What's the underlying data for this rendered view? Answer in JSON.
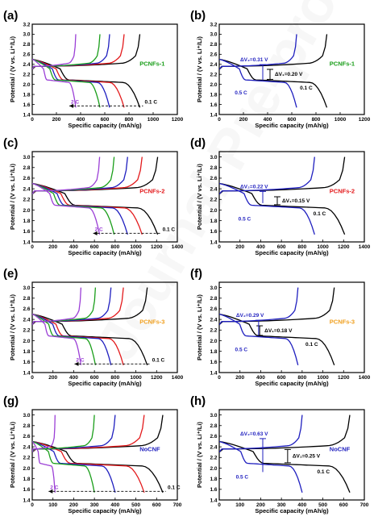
{
  "colors": {
    "c01": "#000000",
    "c02": "#e31a1c",
    "c03": "#1f1fbf",
    "c04": "#1a9e1a",
    "c05": "#9b3fd6",
    "PCNFs-1": "#1a9e1a",
    "PCNFs-2": "#e31a1c",
    "PCNFs-3": "#f0a020",
    "NoCNF": "#1f1fbf"
  },
  "chart_data": [
    {
      "panel": "(a)",
      "type": "line",
      "sample": "PCNFs-1",
      "xlabel": "Specific capacity (mAh/g)",
      "ylabel": "Potential / (V vs. Li⁺/Li)",
      "xlim": [
        0,
        1200
      ],
      "xticks": [
        0,
        200,
        400,
        600,
        800,
        1000,
        1200
      ],
      "ylim": [
        1.4,
        3.2
      ],
      "yticks": [
        1.4,
        1.6,
        1.8,
        2.0,
        2.2,
        2.4,
        2.6,
        2.8,
        3.0,
        3.2
      ],
      "rate_labels": [
        {
          "text": "2 C",
          "color": "c05"
        },
        {
          "text": "0.1 C",
          "color": "c01"
        }
      ],
      "series": [
        {
          "color": "c01",
          "capacity": 890
        },
        {
          "color": "c02",
          "capacity": 760
        },
        {
          "color": "c03",
          "capacity": 640
        },
        {
          "color": "c04",
          "capacity": 560
        },
        {
          "color": "c05",
          "capacity": 360
        }
      ]
    },
    {
      "panel": "(b)",
      "type": "line",
      "sample": "PCNFs-1",
      "xlabel": "Specific capacity (mAh/g)",
      "ylabel": "Potential / (V vs. Li⁺/Li)",
      "xlim": [
        0,
        1200
      ],
      "xticks": [
        0,
        200,
        400,
        600,
        800,
        1000,
        1200
      ],
      "ylim": [
        1.4,
        3.2
      ],
      "yticks": [
        1.4,
        1.6,
        1.8,
        2.0,
        2.2,
        2.4,
        2.6,
        2.8,
        3.0,
        3.2
      ],
      "dv_labels": [
        {
          "text": "ΔV₂=0.31 V",
          "color": "c03"
        },
        {
          "text": "ΔV₁=0.20 V",
          "color": "c01"
        }
      ],
      "rate_labels": [
        {
          "text": "0.1 C",
          "color": "c01"
        },
        {
          "text": "0.5 C",
          "color": "c03"
        }
      ],
      "series": [
        {
          "color": "c01",
          "capacity": 890,
          "dv": 0.2,
          "dv_at": 420
        },
        {
          "color": "c03",
          "capacity": 640,
          "dv": 0.31,
          "dv_at": 360
        }
      ]
    },
    {
      "panel": "(c)",
      "type": "line",
      "sample": "PCNFs-2",
      "xlabel": "Specific capacity (mAh/g)",
      "ylabel": "Potential / (V vs. Li⁺/Li)",
      "xlim": [
        0,
        1400
      ],
      "xticks": [
        0,
        200,
        400,
        600,
        800,
        1000,
        1200,
        1400
      ],
      "ylim": [
        1.4,
        3.1
      ],
      "yticks": [
        1.4,
        1.6,
        1.8,
        2.0,
        2.2,
        2.4,
        2.6,
        2.8,
        3.0
      ],
      "rate_labels": [
        {
          "text": "2 C",
          "color": "c05"
        },
        {
          "text": "0.1 C",
          "color": "c01"
        }
      ],
      "series": [
        {
          "color": "c01",
          "capacity": 1210
        },
        {
          "color": "c02",
          "capacity": 1060
        },
        {
          "color": "c03",
          "capacity": 920
        },
        {
          "color": "c04",
          "capacity": 790
        },
        {
          "color": "c05",
          "capacity": 650
        }
      ]
    },
    {
      "panel": "(d)",
      "type": "line",
      "sample": "PCNFs-2",
      "xlabel": "Specific capacity (mAh/g)",
      "ylabel": "Potential / (V vs. Li⁺/Li)",
      "xlim": [
        0,
        1400
      ],
      "xticks": [
        0,
        200,
        400,
        600,
        800,
        1000,
        1200,
        1400
      ],
      "ylim": [
        1.4,
        3.1
      ],
      "yticks": [
        1.4,
        1.6,
        1.8,
        2.0,
        2.2,
        2.4,
        2.6,
        2.8,
        3.0
      ],
      "dv_labels": [
        {
          "text": "ΔV₂=0.22 V",
          "color": "c03"
        },
        {
          "text": "ΔV₁=0.15 V",
          "color": "c01"
        }
      ],
      "rate_labels": [
        {
          "text": "0.1 C",
          "color": "c01"
        },
        {
          "text": "0.5 C",
          "color": "c03"
        }
      ],
      "series": [
        {
          "color": "c01",
          "capacity": 1210,
          "dv": 0.15,
          "dv_at": 560
        },
        {
          "color": "c03",
          "capacity": 920,
          "dv": 0.22,
          "dv_at": 420
        }
      ]
    },
    {
      "panel": "(e)",
      "type": "line",
      "sample": "PCNFs-3",
      "xlabel": "Specific capacity (mAh/g)",
      "ylabel": "Potential / (V vs. Li⁺/Li)",
      "xlim": [
        0,
        1400
      ],
      "xticks": [
        0,
        200,
        400,
        600,
        800,
        1000,
        1200,
        1400
      ],
      "ylim": [
        1.4,
        3.1
      ],
      "yticks": [
        1.4,
        1.6,
        1.8,
        2.0,
        2.2,
        2.4,
        2.6,
        2.8,
        3.0
      ],
      "rate_labels": [
        {
          "text": "2 C",
          "color": "c05"
        },
        {
          "text": "0.1 C",
          "color": "c01"
        }
      ],
      "series": [
        {
          "color": "c01",
          "capacity": 1110
        },
        {
          "color": "c02",
          "capacity": 880
        },
        {
          "color": "c03",
          "capacity": 760
        },
        {
          "color": "c04",
          "capacity": 610
        },
        {
          "color": "c05",
          "capacity": 470
        }
      ]
    },
    {
      "panel": "(f)",
      "type": "line",
      "sample": "PCNFs-3",
      "xlabel": "Specific capacity (mAh/g)",
      "ylabel": "Potential / (V vs. Li⁺/Li)",
      "xlim": [
        0,
        1400
      ],
      "xticks": [
        0,
        200,
        400,
        600,
        800,
        1000,
        1200,
        1400
      ],
      "ylim": [
        1.4,
        3.1
      ],
      "yticks": [
        1.4,
        1.6,
        1.8,
        2.0,
        2.2,
        2.4,
        2.6,
        2.8,
        3.0
      ],
      "dv_labels": [
        {
          "text": "ΔV₂=0.29 V",
          "color": "c03"
        },
        {
          "text": "ΔV₁=0.18 V",
          "color": "c01"
        }
      ],
      "rate_labels": [
        {
          "text": "0.1 C",
          "color": "c01"
        },
        {
          "text": "0.5 C",
          "color": "c03"
        }
      ],
      "series": [
        {
          "color": "c01",
          "capacity": 1110,
          "dv": 0.18,
          "dv_at": 390
        },
        {
          "color": "c03",
          "capacity": 760,
          "dv": 0.29,
          "dv_at": 380
        }
      ]
    },
    {
      "panel": "(g)",
      "type": "line",
      "sample": "NoCNF",
      "xlabel": "Specific capacity (mAh/g)",
      "ylabel": "Potential / (V vs. Li⁺/Li)",
      "xlim": [
        0,
        700
      ],
      "xticks": [
        0,
        100,
        200,
        300,
        400,
        500,
        600,
        700
      ],
      "ylim": [
        1.4,
        3.1
      ],
      "yticks": [
        1.4,
        1.6,
        1.8,
        2.0,
        2.2,
        2.4,
        2.6,
        2.8,
        3.0
      ],
      "rate_labels": [
        {
          "text": "2 C",
          "color": "c05"
        },
        {
          "text": "0.1 C",
          "color": "c01"
        }
      ],
      "series": [
        {
          "color": "c01",
          "capacity": 630
        },
        {
          "color": "c02",
          "capacity": 540
        },
        {
          "color": "c03",
          "capacity": 400
        },
        {
          "color": "c04",
          "capacity": 300
        },
        {
          "color": "c05",
          "capacity": 110
        }
      ]
    },
    {
      "panel": "(h)",
      "type": "line",
      "sample": "NoCNF",
      "xlabel": "Specific capacity (mAh/g)",
      "ylabel": "Potential / (V vs. Li⁺/Li)",
      "xlim": [
        0,
        700
      ],
      "xticks": [
        0,
        100,
        200,
        300,
        400,
        500,
        600,
        700
      ],
      "ylim": [
        1.4,
        3.1
      ],
      "yticks": [
        1.4,
        1.6,
        1.8,
        2.0,
        2.2,
        2.4,
        2.6,
        2.8,
        3.0
      ],
      "dv_labels": [
        {
          "text": "ΔV₂=0.63 V",
          "color": "c03"
        },
        {
          "text": "ΔV₁=0.25 V",
          "color": "c01"
        }
      ],
      "rate_labels": [
        {
          "text": "0.1 C",
          "color": "c01"
        },
        {
          "text": "0.5 C",
          "color": "c03"
        }
      ],
      "series": [
        {
          "color": "c01",
          "capacity": 630,
          "dv": 0.25,
          "dv_at": 330
        },
        {
          "color": "c03",
          "capacity": 400,
          "dv": 0.63,
          "dv_at": 210
        }
      ]
    }
  ]
}
